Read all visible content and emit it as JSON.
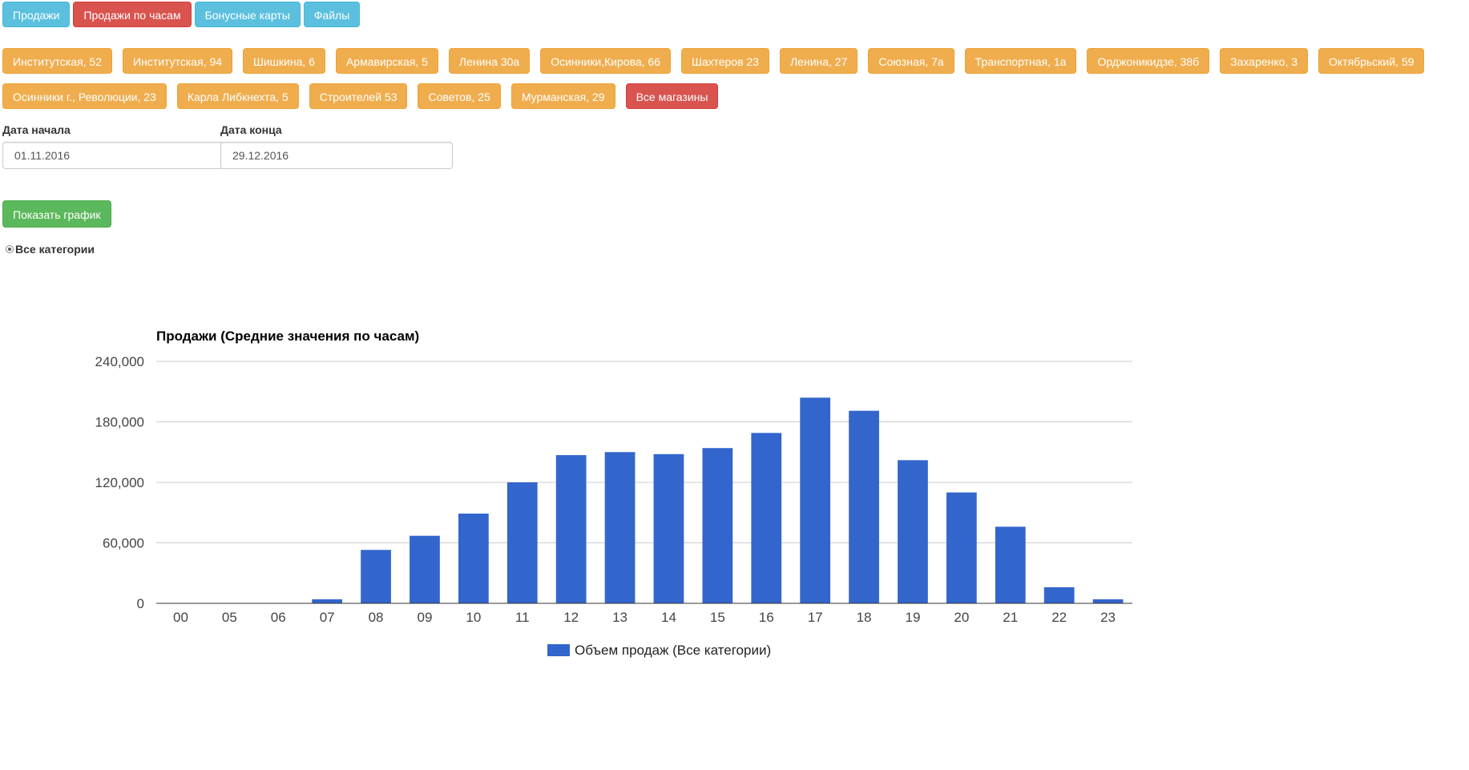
{
  "nav": {
    "tabs": [
      {
        "label": "Продажи",
        "style": "info"
      },
      {
        "label": "Продажи по часам",
        "style": "danger"
      },
      {
        "label": "Бонусные карты",
        "style": "info"
      },
      {
        "label": "Файлы",
        "style": "info"
      }
    ]
  },
  "stores": {
    "row1": [
      "Институтская, 52",
      "Институтская, 94",
      "Шишкина, 6",
      "Армавирская, 5",
      "Ленина 30а",
      "Осинники,Кирова, 66",
      "Шахтеров 23",
      "Ленина, 27",
      "Союзная, 7а",
      "Транспортная, 1а",
      "Орджоникидзе, 38б",
      "Захаренко, 3",
      "Октябрьский, 59"
    ],
    "row2": [
      "Осинники г., Революции, 23",
      "Карла Либкнехта, 5",
      "Строителей 53",
      "Советов, 25",
      "Мурманская, 29"
    ],
    "all_label": "Все магазины"
  },
  "filters": {
    "start_label": "Дата начала",
    "start_value": "01.11.2016",
    "end_label": "Дата конца",
    "end_value": "29.12.2016",
    "show_button": "Показать график",
    "category_label": "Все категории"
  },
  "colors": {
    "bar": "#3366cc",
    "info": "#5bc0de",
    "danger": "#d9534f",
    "warning": "#f0ad4e",
    "success": "#5cb85c"
  },
  "chart_data": {
    "type": "bar",
    "title": "Продажи (Средние значения по часам)",
    "categories": [
      "00",
      "05",
      "06",
      "07",
      "08",
      "09",
      "10",
      "11",
      "12",
      "13",
      "14",
      "15",
      "16",
      "17",
      "18",
      "19",
      "20",
      "21",
      "22",
      "23"
    ],
    "series": [
      {
        "name": "Объем продаж (Все категории)",
        "values": [
          0,
          0,
          0,
          4000,
          53000,
          67000,
          89000,
          120000,
          147000,
          150000,
          148000,
          154000,
          169000,
          204000,
          191000,
          142000,
          110000,
          76000,
          16000,
          4000
        ]
      }
    ],
    "ylim": [
      0,
      240000
    ],
    "yticks": [
      "0",
      "60,000",
      "120,000",
      "180,000",
      "240,000"
    ],
    "ytick_values": [
      0,
      60000,
      120000,
      180000,
      240000
    ],
    "grid": true,
    "legend": "bottom"
  }
}
